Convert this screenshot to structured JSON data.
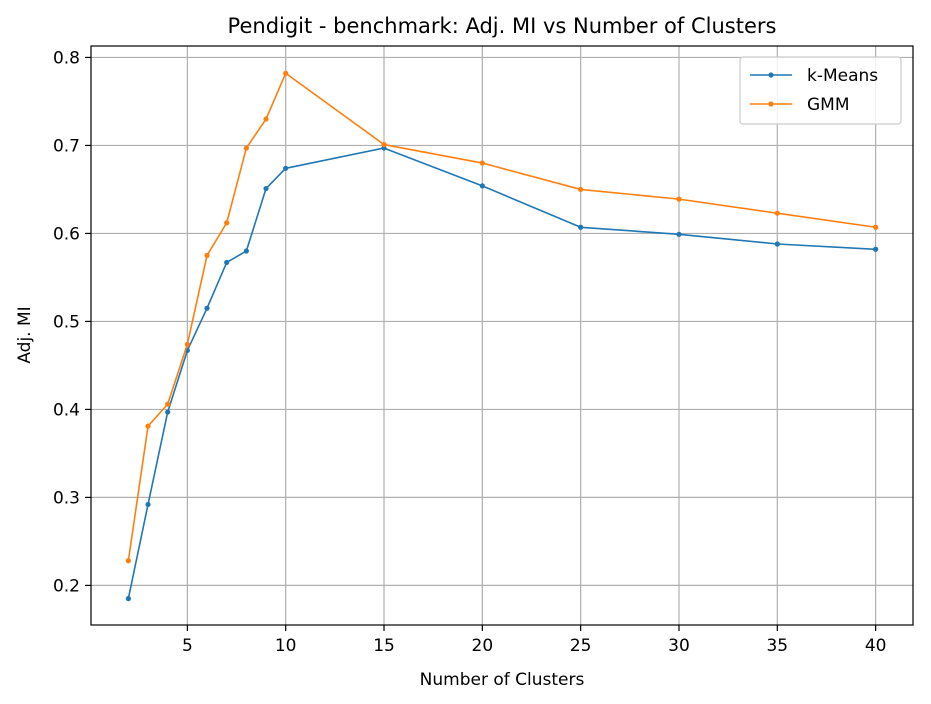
{
  "chart_data": {
    "type": "line",
    "title": "Pendigit - benchmark: Adj. MI vs Number of Clusters",
    "xlabel": "Number of Clusters",
    "ylabel": "Adj. MI",
    "xlim": [
      0.1,
      41.9
    ],
    "ylim": [
      0.155,
      0.813
    ],
    "xticks": [
      5,
      10,
      15,
      20,
      25,
      30,
      35,
      40
    ],
    "yticks": [
      0.2,
      0.3,
      0.4,
      0.5,
      0.6,
      0.7,
      0.8
    ],
    "xtick_labels": [
      "5",
      "10",
      "15",
      "20",
      "25",
      "30",
      "35",
      "40"
    ],
    "ytick_labels": [
      "0.2",
      "0.3",
      "0.4",
      "0.5",
      "0.6",
      "0.7",
      "0.8"
    ],
    "grid": true,
    "legend_position": "top-right",
    "x": [
      2,
      3,
      4,
      5,
      6,
      7,
      8,
      9,
      10,
      15,
      20,
      25,
      30,
      35,
      40
    ],
    "series": [
      {
        "name": "k-Means",
        "color": "#1f77b4",
        "values": [
          0.185,
          0.292,
          0.397,
          0.467,
          0.515,
          0.567,
          0.58,
          0.651,
          0.674,
          0.697,
          0.654,
          0.607,
          0.599,
          0.588,
          0.582
        ]
      },
      {
        "name": "GMM",
        "color": "#ff7f0e",
        "values": [
          0.228,
          0.381,
          0.406,
          0.474,
          0.575,
          0.612,
          0.697,
          0.73,
          0.782,
          0.701,
          0.68,
          0.65,
          0.639,
          0.623,
          0.607
        ]
      }
    ]
  }
}
